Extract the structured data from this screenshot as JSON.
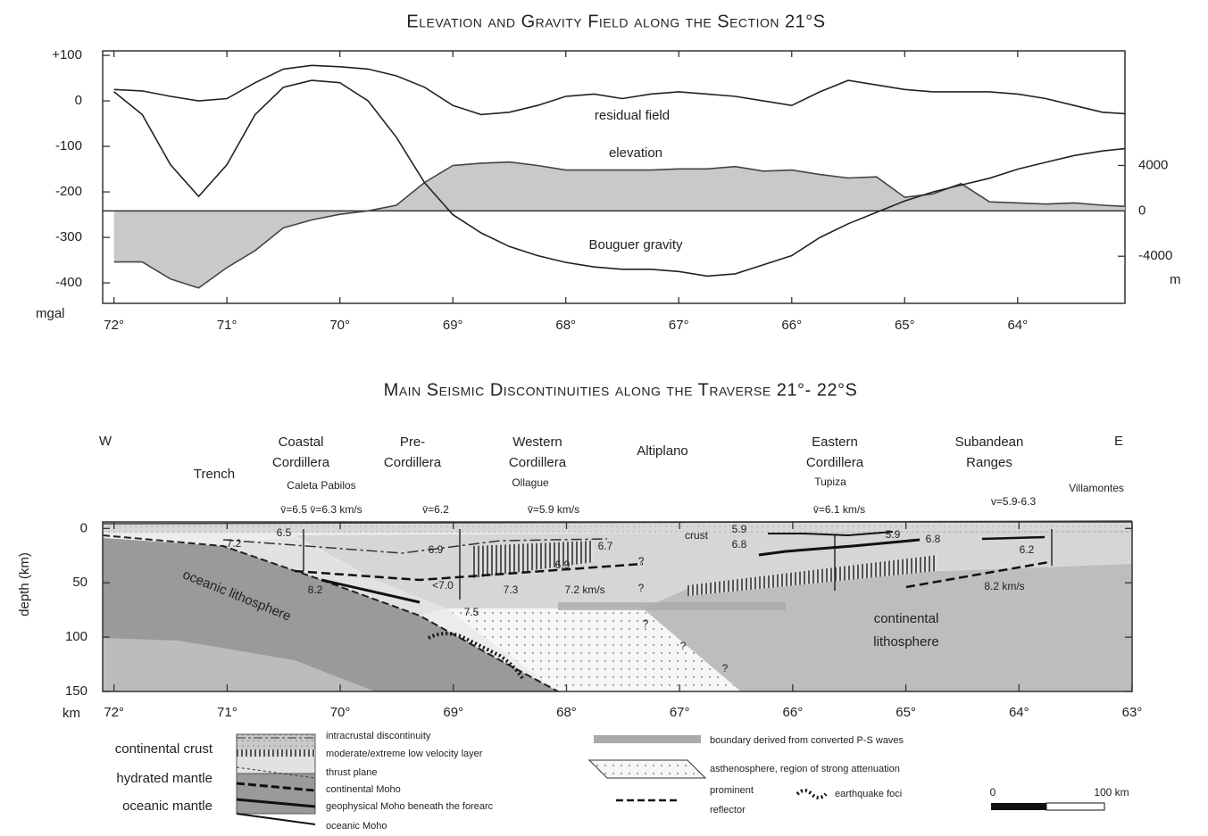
{
  "chart_data": [
    {
      "type": "line",
      "title": "Elevation and Gravity Field along the Section 21°S",
      "x": [
        72,
        71.75,
        71.5,
        71.25,
        71,
        70.75,
        70.5,
        70.25,
        70,
        69.75,
        69.5,
        69.25,
        69,
        68.75,
        68.5,
        68.25,
        68,
        67.75,
        67.5,
        67.25,
        67,
        66.75,
        66.5,
        66.25,
        66,
        65.75,
        65.5,
        65.25,
        65,
        64.75,
        64.5,
        64.25,
        64,
        63.75,
        63.5,
        63.25,
        63.05
      ],
      "series": [
        {
          "name": "residual field",
          "color": "#222",
          "values": [
            25,
            22,
            10,
            0,
            5,
            40,
            70,
            78,
            75,
            70,
            55,
            30,
            -10,
            -30,
            -25,
            -10,
            10,
            15,
            5,
            15,
            20,
            15,
            10,
            0,
            -10,
            20,
            45,
            35,
            25,
            20,
            20,
            20,
            15,
            5,
            -10,
            -25,
            -28
          ]
        },
        {
          "name": "elevation",
          "color": "#444",
          "fill_color": "#c9c9c9",
          "axis": "y2",
          "values": [
            -4500,
            -4500,
            -6000,
            -6800,
            -5000,
            -3500,
            -1500,
            -800,
            -300,
            0,
            500,
            2500,
            4000,
            4200,
            4300,
            4000,
            3600,
            3600,
            3600,
            3600,
            3700,
            3700,
            3900,
            3500,
            3600,
            3200,
            2900,
            3000,
            1200,
            1500,
            2400,
            800,
            700,
            600,
            700,
            500,
            400
          ]
        },
        {
          "name": "Bouguer gravity",
          "color": "#222",
          "values": [
            20,
            -30,
            -140,
            -210,
            -140,
            -30,
            30,
            45,
            40,
            0,
            -80,
            -180,
            -250,
            -290,
            -320,
            -340,
            -355,
            -365,
            -370,
            -370,
            -375,
            -385,
            -380,
            -360,
            -340,
            -300,
            -270,
            -245,
            -220,
            -200,
            -185,
            -170,
            -150,
            -135,
            -120,
            -110,
            -105
          ]
        }
      ],
      "xlim": [
        72.1,
        63.05
      ],
      "xticks": [
        {
          "value": 72,
          "label": "72°"
        },
        {
          "value": 71,
          "label": "71°"
        },
        {
          "value": 70,
          "label": "70°"
        },
        {
          "value": 69,
          "label": "69°"
        },
        {
          "value": 68,
          "label": "68°"
        },
        {
          "value": 67,
          "label": "67°"
        },
        {
          "value": 66,
          "label": "66°"
        },
        {
          "value": 65,
          "label": "65°"
        },
        {
          "value": 64,
          "label": "64°"
        }
      ],
      "ylim": [
        -445,
        110
      ],
      "yticks": [
        {
          "value": 100,
          "label": "+100"
        },
        0,
        -100,
        -200,
        -300,
        -400
      ],
      "y2lim": [
        -8150,
        14100
      ],
      "y2ticks": [
        4000,
        0,
        -4000
      ],
      "ylabel": "mgal",
      "y2label": "m"
    },
    {
      "type": "section",
      "title": "Main Seismic Discontinuities along the Traverse 21°- 22°S",
      "xlim": [
        72.1,
        63
      ],
      "xticks": [
        {
          "value": 72,
          "label": "72°"
        },
        {
          "value": 71,
          "label": "71°"
        },
        {
          "value": 70,
          "label": "70°"
        },
        {
          "value": 69,
          "label": "69°"
        },
        {
          "value": 68,
          "label": "68°"
        },
        {
          "value": 67,
          "label": "67°"
        },
        {
          "value": 66,
          "label": "66°"
        },
        {
          "value": 65,
          "label": "65°"
        },
        {
          "value": 64,
          "label": "64°"
        },
        {
          "value": 63,
          "label": "63°"
        }
      ],
      "ylim": [
        150,
        -6
      ],
      "yticks": [
        0,
        50,
        100,
        150
      ],
      "ylabel": "depth (km)",
      "xlabel": "km",
      "sides": [
        "W",
        "E"
      ],
      "regions": [
        [
          "Trench"
        ],
        [
          "Coastal",
          "Cordillera"
        ],
        [
          "Pre-",
          "Cordillera"
        ],
        [
          "Western",
          "Cordillera"
        ],
        [
          "Altiplano"
        ],
        [
          "Eastern",
          "Cordillera"
        ],
        [
          "Subandean",
          "Ranges"
        ]
      ],
      "places": [
        "Caleta Pabilos",
        "Ollague",
        "Tupiza",
        "Villamontes"
      ],
      "annotations": [
        "v̄=6.5 v̄=6.3 km/s",
        "v̄=6.2",
        "v̄=5.9 km/s",
        "v̄=6.1 km/s",
        "v=5.9-6.3",
        "6.5",
        "7.2",
        "6.9",
        "6.7",
        "6.9",
        "7.3",
        "7.2 km/s",
        "<7.0",
        "7.5",
        "8.2",
        "crust",
        "5.9",
        "6.8",
        "5.9",
        "6.8",
        "6.2",
        "8.2 km/s",
        "?",
        "?",
        "?",
        "?",
        "?"
      ],
      "bodies": [
        [
          "oceanic lithosphere"
        ],
        [
          "continental",
          "lithosphere"
        ]
      ],
      "legend_fills": [
        "continental crust",
        "hydrated mantle",
        "oceanic mantle"
      ],
      "legend_lines": [
        "intracrustal discontinuity",
        "moderate/extreme low velocity layer",
        "thrust plane",
        "continental Moho",
        "geophysical Moho beneath the forearc",
        "oceanic Moho"
      ],
      "legend_other": [
        "boundary derived from converted P-S waves",
        "asthenosphere, region of strong attenuation",
        "prominent",
        "reflector",
        "earthquake foci"
      ],
      "scale_labels": [
        "0",
        "100 km"
      ]
    }
  ]
}
